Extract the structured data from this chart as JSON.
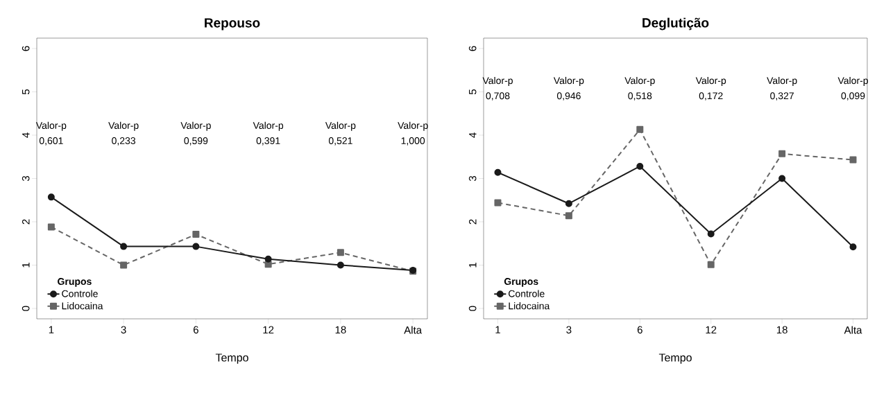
{
  "chart_data": [
    {
      "type": "line",
      "title": "Repouso",
      "xlabel": "Tempo",
      "categories": [
        "1",
        "3",
        "6",
        "12",
        "18",
        "Alta"
      ],
      "series": [
        {
          "name": "Controle",
          "color": "#1a1a1a",
          "marker": "circle",
          "line_style": "solid",
          "values": [
            2.57,
            1.43,
            1.43,
            1.14,
            1.0,
            0.88
          ]
        },
        {
          "name": "Lidocaina",
          "color": "#666666",
          "marker": "square",
          "line_style": "dashed",
          "values": [
            1.88,
            1.0,
            1.71,
            1.02,
            1.29,
            0.86
          ]
        }
      ],
      "ylim": [
        -0.24,
        6.24
      ],
      "yticks": [
        0,
        1,
        2,
        3,
        4,
        5,
        6
      ],
      "legend": "bottom left",
      "legend_title": "Grupos",
      "grid": false,
      "annotations": [
        "Valor-p 0,601",
        "Valor-p 0,233",
        "Valor-p 0,599",
        "Valor-p 0,391",
        "Valor-p 0,521",
        "Valor-p 1,000"
      ]
    },
    {
      "type": "line",
      "title": "Deglutição",
      "xlabel": "Tempo",
      "categories": [
        "1",
        "3",
        "6",
        "12",
        "18",
        "Alta"
      ],
      "series": [
        {
          "name": "Controle",
          "color": "#1a1a1a",
          "marker": "circle",
          "line_style": "solid",
          "values": [
            3.14,
            2.42,
            3.28,
            1.72,
            3.0,
            1.42
          ]
        },
        {
          "name": "Lidocaina",
          "color": "#666666",
          "marker": "square",
          "line_style": "dashed",
          "values": [
            2.44,
            2.14,
            4.13,
            1.01,
            3.57,
            3.43
          ]
        }
      ],
      "ylim": [
        -0.24,
        6.24
      ],
      "yticks": [
        0,
        1,
        2,
        3,
        4,
        5,
        6
      ],
      "legend": "bottom left",
      "legend_title": "Grupos",
      "grid": false,
      "annotations": [
        "Valor-p 0,708",
        "Valor-p 0,946",
        "Valor-p 0,518",
        "Valor-p 0,172",
        "Valor-p 0,327",
        "Valor-p 0,099"
      ]
    }
  ]
}
